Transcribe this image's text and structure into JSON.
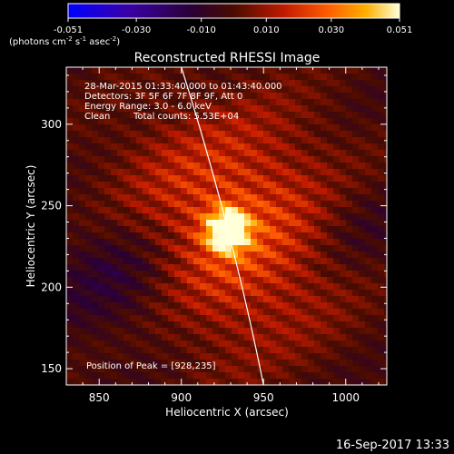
{
  "colorbar": {
    "ticks": [
      "-0.051",
      "-0.030",
      "-0.010",
      "0.010",
      "0.030",
      "0.051"
    ],
    "tick_values": [
      -0.051,
      -0.03,
      -0.01,
      0.01,
      0.03,
      0.051
    ],
    "range": [
      -0.051,
      0.051
    ],
    "unit_main": "(photons cm",
    "unit_sup1": "-2",
    "unit_mid": " s",
    "unit_sup2": "-1",
    "unit_mid2": " asec",
    "unit_sup3": "-2",
    "unit_end": ")",
    "colors": [
      "#0000ff",
      "#3a00a8",
      "#2a0030",
      "#4a0c00",
      "#c01a00",
      "#ff5a00",
      "#ffb000",
      "#ffffd8"
    ]
  },
  "chart_data": {
    "type": "heatmap",
    "title": "Reconstructed RHESSI Image",
    "xlabel": "Heliocentric X (arcsec)",
    "ylabel": "Heliocentric Y (arcsec)",
    "xlim": [
      830,
      1025
    ],
    "ylim": [
      140,
      335
    ],
    "xticks": [
      850,
      900,
      950,
      1000
    ],
    "yticks": [
      150,
      200,
      250,
      300
    ],
    "peak": {
      "x": 928,
      "y": 235
    },
    "limb_arc": {
      "x_top": 900,
      "y_top": 335,
      "x_bottom": 950,
      "y_bottom": 140
    }
  },
  "annotations": {
    "line1": "28-Mar-2015 01:33:40.000 to 01:43:40.000",
    "line2": "Detectors: 3F 5F 6F 7F 8F 9F, Att 0",
    "line3": "Energy Range: 3.0 - 6.0 keV",
    "line4_a": "Clean",
    "line4_b": "Total counts: 5.53E+04",
    "peak_label": "Position of Peak = [928,235]"
  },
  "footer": {
    "timestamp": "16-Sep-2017 13:33"
  }
}
